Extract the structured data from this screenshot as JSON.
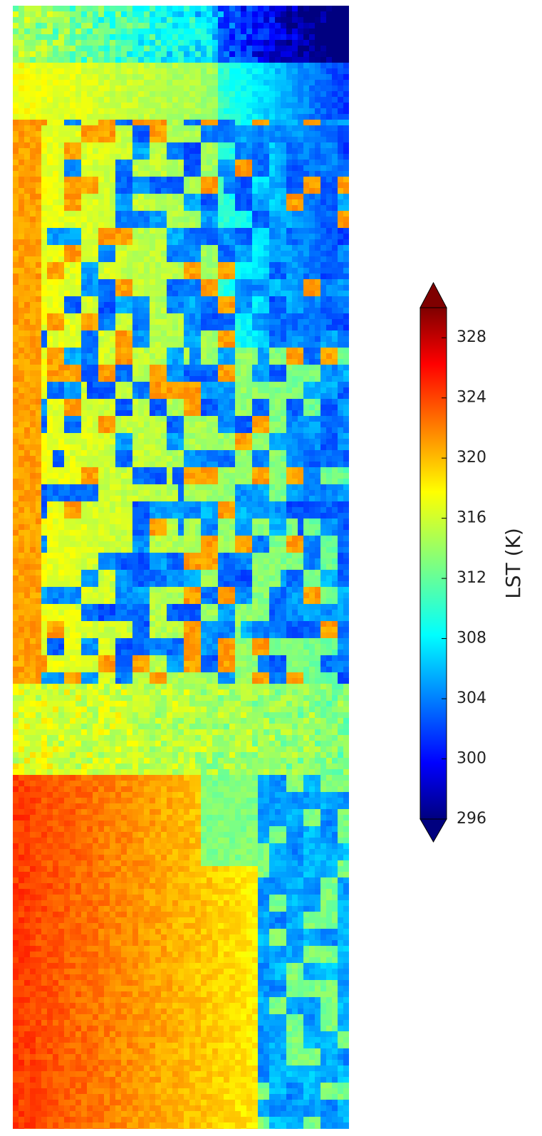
{
  "colorbar": {
    "label": "LST (K)",
    "lim": [
      296,
      330
    ],
    "ticks": [
      296,
      300,
      304,
      308,
      312,
      316,
      320,
      324,
      328
    ],
    "extend": "both"
  }
}
